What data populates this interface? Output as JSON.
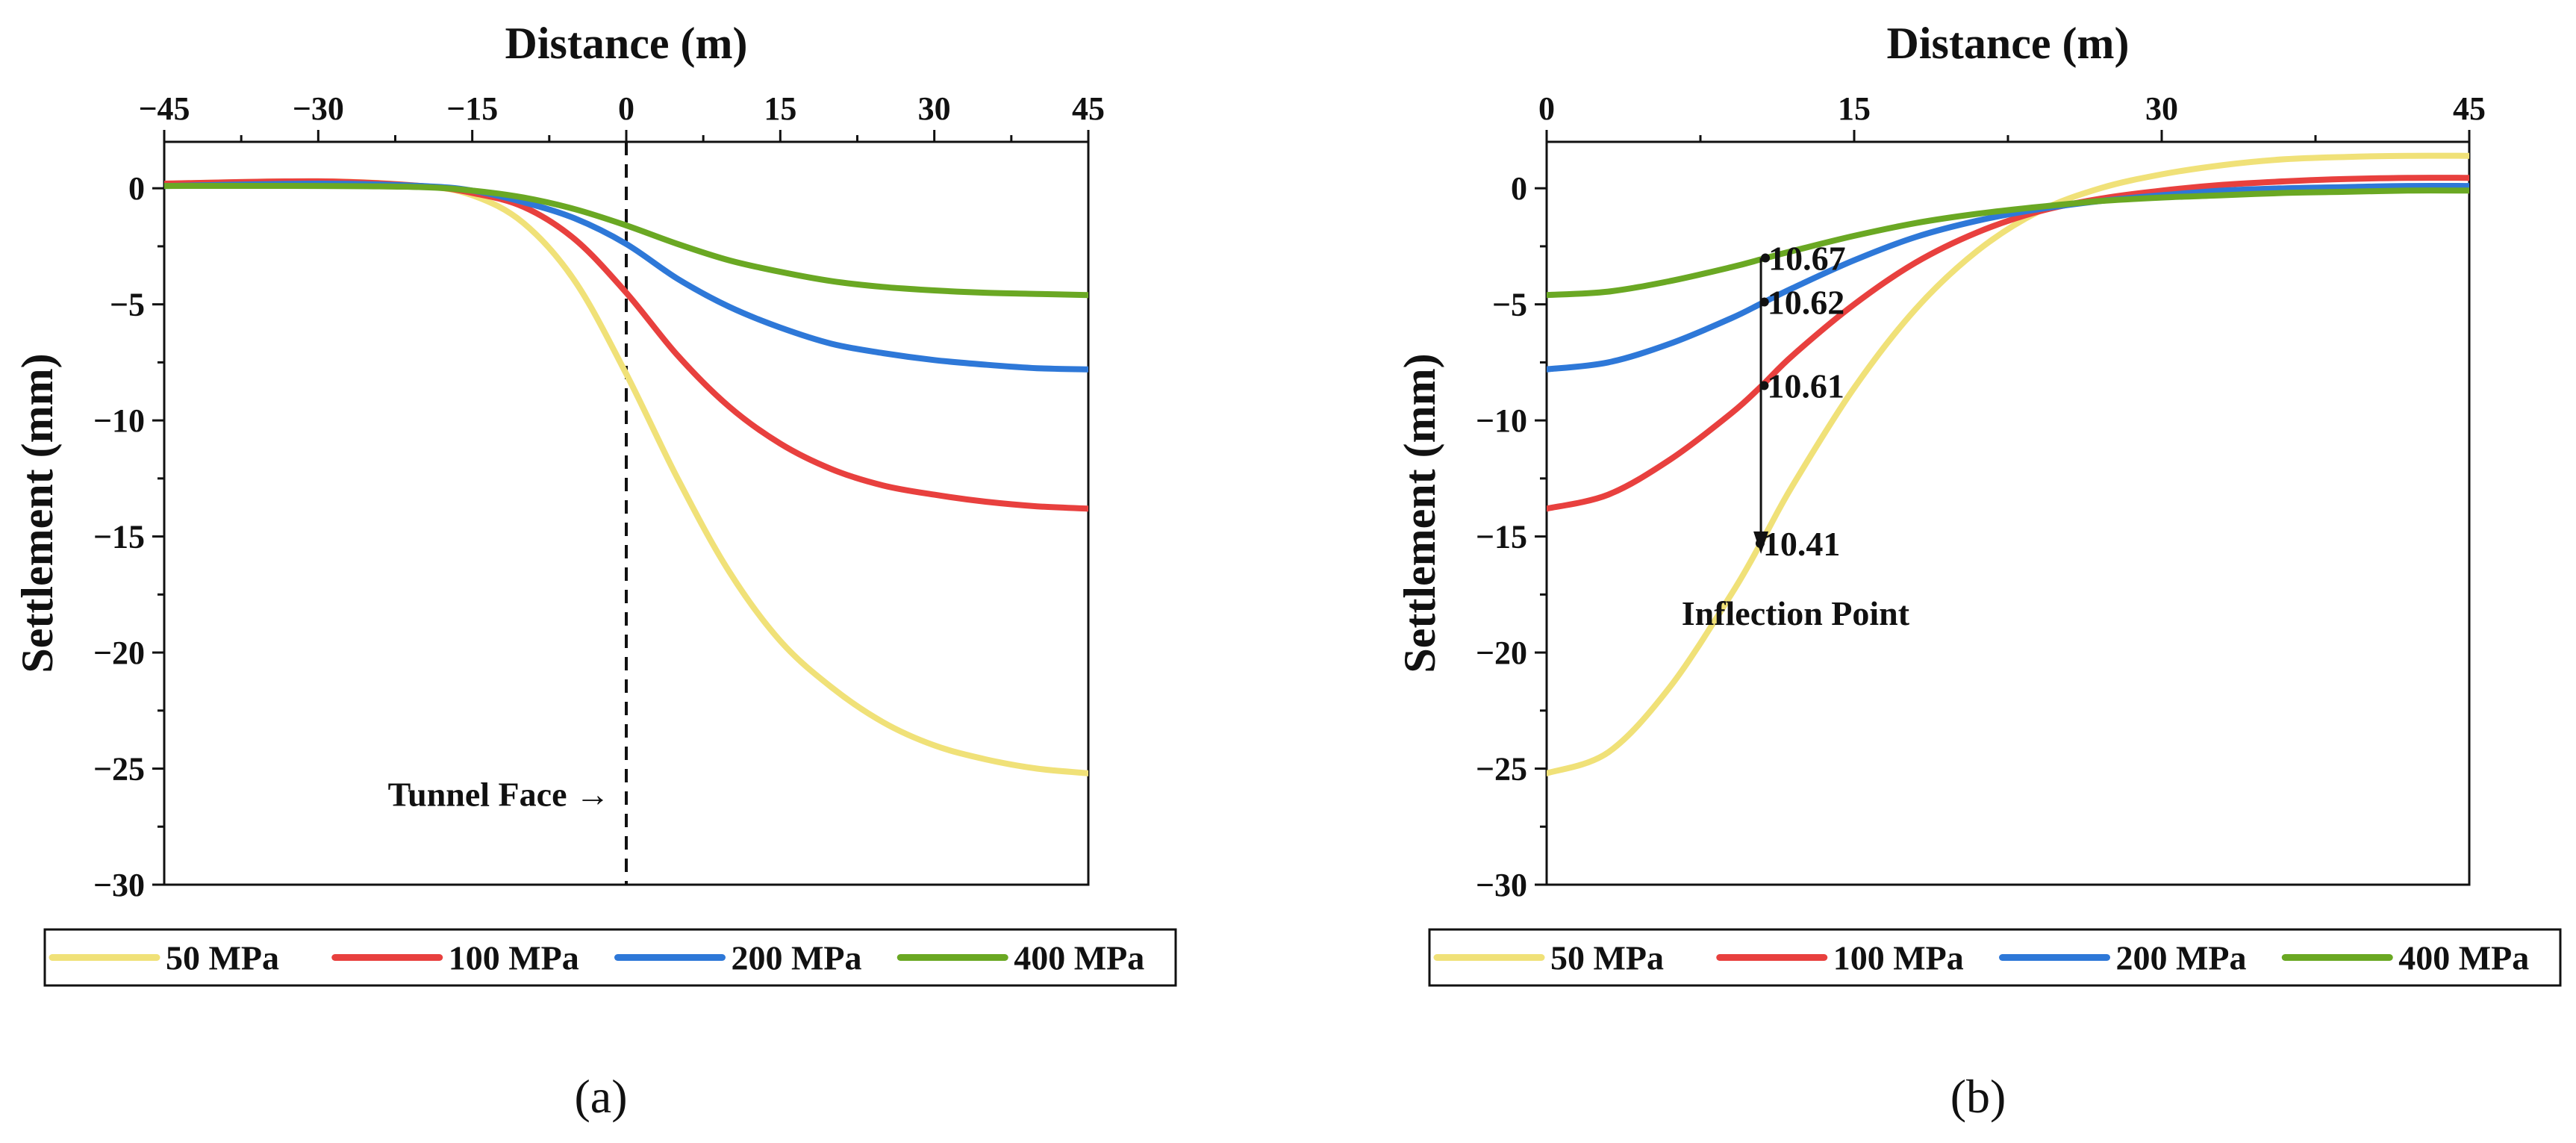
{
  "chart_data": [
    {
      "panel": "a",
      "type": "line",
      "panel_label": "(a)",
      "xlabel": "Distance (m)",
      "ylabel": "Settlement (mm)",
      "xlim": [
        -45,
        45
      ],
      "ylim": [
        -30,
        2
      ],
      "xticks": [
        -45,
        -30,
        -15,
        0,
        15,
        30,
        45
      ],
      "yticks": [
        0,
        -5,
        -10,
        -15,
        -20,
        -25,
        -30
      ],
      "x": [
        -45,
        -30,
        -20,
        -15,
        -10,
        -5,
        0,
        5,
        10,
        15,
        20,
        25,
        30,
        35,
        40,
        45
      ],
      "series": [
        {
          "name": "50 MPa",
          "color": "#F0E178",
          "values": [
            0.2,
            0.3,
            0.1,
            -0.3,
            -1.5,
            -4.0,
            -8.0,
            -12.5,
            -16.5,
            -19.5,
            -21.5,
            -23.0,
            -24.0,
            -24.6,
            -25.0,
            -25.2
          ]
        },
        {
          "name": "100 MPa",
          "color": "#E8403E",
          "values": [
            0.2,
            0.3,
            0.1,
            -0.2,
            -0.8,
            -2.2,
            -4.5,
            -7.2,
            -9.4,
            -11.0,
            -12.1,
            -12.8,
            -13.2,
            -13.5,
            -13.7,
            -13.8
          ]
        },
        {
          "name": "200 MPa",
          "color": "#2E78D8",
          "values": [
            0.1,
            0.2,
            0.1,
            -0.1,
            -0.6,
            -1.3,
            -2.4,
            -3.9,
            -5.1,
            -6.0,
            -6.7,
            -7.1,
            -7.4,
            -7.6,
            -7.75,
            -7.8
          ]
        },
        {
          "name": "400 MPa",
          "color": "#6AA823",
          "values": [
            0.1,
            0.1,
            0.05,
            -0.1,
            -0.4,
            -0.9,
            -1.6,
            -2.4,
            -3.1,
            -3.6,
            -4.0,
            -4.25,
            -4.4,
            -4.5,
            -4.55,
            -4.6
          ]
        }
      ],
      "annotations": {
        "tunnel_face_x": 0,
        "tunnel_face_text": "Tunnel Face →"
      },
      "legend": [
        "50 MPa",
        "100 MPa",
        "200 MPa",
        "400 MPa"
      ]
    },
    {
      "panel": "b",
      "type": "line",
      "panel_label": "(b)",
      "xlabel": "Distance (m)",
      "ylabel": "Settlement (mm)",
      "xlim": [
        0,
        45
      ],
      "ylim": [
        -30,
        2
      ],
      "xticks": [
        0,
        15,
        30,
        45
      ],
      "yticks": [
        0,
        -5,
        -10,
        -15,
        -20,
        -25,
        -30
      ],
      "x": [
        0,
        3,
        6,
        9,
        10.5,
        12,
        15,
        18,
        21,
        24,
        27,
        30,
        33,
        36,
        39,
        42,
        45
      ],
      "series": [
        {
          "name": "50 MPa",
          "color": "#F0E178",
          "values": [
            -25.2,
            -24.3,
            -21.5,
            -17.5,
            -15.2,
            -12.8,
            -8.6,
            -5.2,
            -2.7,
            -1.0,
            0.0,
            0.6,
            1.0,
            1.25,
            1.35,
            1.4,
            1.4
          ]
        },
        {
          "name": "100 MPa",
          "color": "#E8403E",
          "values": [
            -13.8,
            -13.2,
            -11.7,
            -9.7,
            -8.5,
            -7.2,
            -5.0,
            -3.2,
            -1.9,
            -1.0,
            -0.45,
            -0.1,
            0.15,
            0.3,
            0.4,
            0.45,
            0.45
          ]
        },
        {
          "name": "200 MPa",
          "color": "#2E78D8",
          "values": [
            -7.8,
            -7.5,
            -6.7,
            -5.6,
            -4.95,
            -4.3,
            -3.1,
            -2.1,
            -1.4,
            -0.9,
            -0.55,
            -0.3,
            -0.1,
            0.0,
            0.05,
            0.1,
            0.1
          ]
        },
        {
          "name": "400 MPa",
          "color": "#6AA823",
          "values": [
            -4.6,
            -4.45,
            -4.0,
            -3.4,
            -3.05,
            -2.7,
            -2.05,
            -1.5,
            -1.1,
            -0.8,
            -0.55,
            -0.4,
            -0.3,
            -0.2,
            -0.15,
            -0.1,
            -0.1
          ]
        }
      ],
      "inflection_points": [
        {
          "series": "400 MPa",
          "x": 10.67,
          "y": -3.0,
          "label": "10.67"
        },
        {
          "series": "200 MPa",
          "x": 10.62,
          "y": -4.9,
          "label": "10.62"
        },
        {
          "series": "100 MPa",
          "x": 10.61,
          "y": -8.5,
          "label": "10.61"
        },
        {
          "series": "50 MPa",
          "x": 10.41,
          "y": -15.3,
          "label": "10.41"
        }
      ],
      "annotations": {
        "inflection_text": "Inflection Point"
      },
      "legend": [
        "50 MPa",
        "100 MPa",
        "200 MPa",
        "400 MPa"
      ]
    }
  ]
}
